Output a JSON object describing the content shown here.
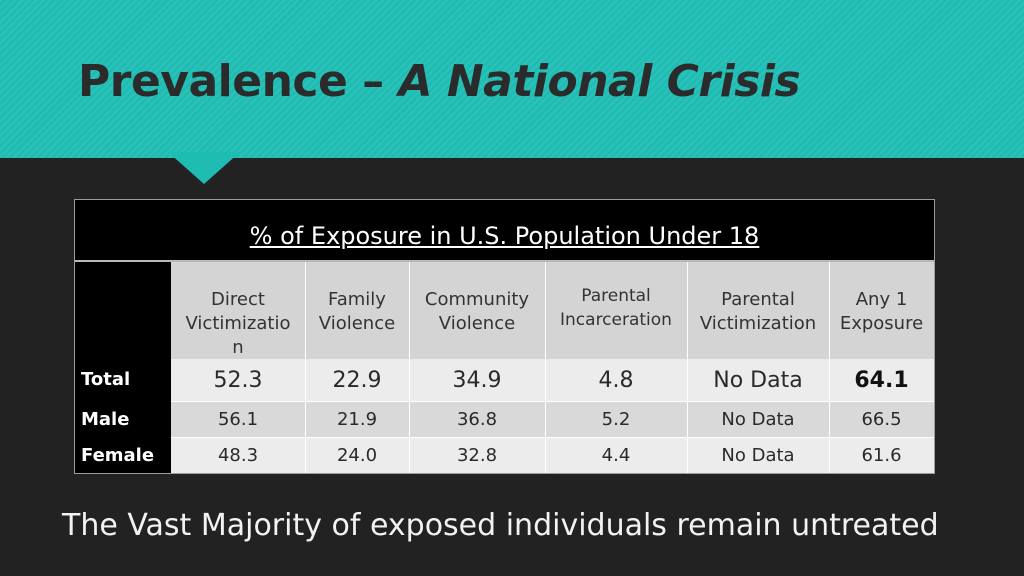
{
  "slide": {
    "title_main": "Prevalence –",
    "title_em": "A National Crisis",
    "footer": "The Vast Majority of exposed individuals remain untreated"
  },
  "table": {
    "caption": "% of Exposure in U.S. Population Under 18",
    "columns": [
      "Direct Victimization",
      "Family Violence",
      "Community Violence",
      "Parental Incarceration",
      "Parental Victimization",
      "Any 1 Exposure"
    ],
    "rows": [
      {
        "label": "Total",
        "values": [
          "52.3",
          "22.9",
          "34.9",
          "4.8",
          "No Data",
          "64.1"
        ]
      },
      {
        "label": "Male",
        "values": [
          "56.1",
          "21.9",
          "36.8",
          "5.2",
          "No Data",
          "66.5"
        ]
      },
      {
        "label": "Female",
        "values": [
          "48.3",
          "24.0",
          "32.8",
          "4.4",
          "No Data",
          "61.6"
        ]
      }
    ]
  },
  "colors": {
    "header_teal": "#1ebcb3",
    "background": "#222222",
    "column_header_bg": "#d4d4d4",
    "row_light": "#ececec",
    "row_lighter": "#f5f5f5"
  }
}
